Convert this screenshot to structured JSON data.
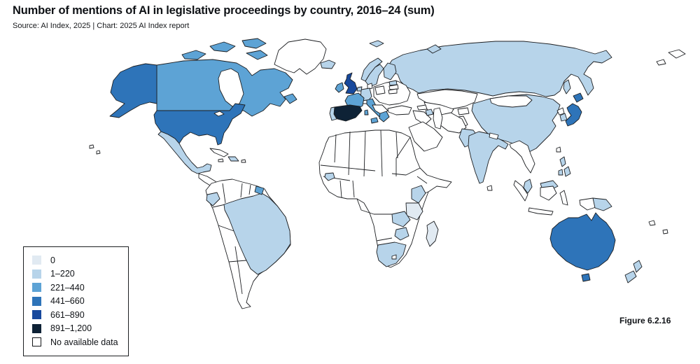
{
  "header": {
    "title": "Number of mentions of AI in legislative proceedings by country, 2016–24 (sum)",
    "source": "Source: AI Index, 2025 | Chart: 2025 AI Index report"
  },
  "figure_label": "Figure 6.2.16",
  "legend": {
    "items": [
      {
        "label": "0",
        "color": "#e1eaf2",
        "bordered": false
      },
      {
        "label": "1–220",
        "color": "#b7d4ea",
        "bordered": false
      },
      {
        "label": "221–440",
        "color": "#5da3d5",
        "bordered": false
      },
      {
        "label": "441–660",
        "color": "#2e74b9",
        "bordered": false
      },
      {
        "label": "661–890",
        "color": "#17499d",
        "bordered": false
      },
      {
        "label": "891–1,200",
        "color": "#0e2236",
        "bordered": false
      },
      {
        "label": "No available data",
        "color": "#ffffff",
        "bordered": true
      }
    ]
  },
  "chart_data": {
    "type": "choropleth_map",
    "title": "Number of mentions of AI in legislative proceedings by country, 2016–24 (sum)",
    "unit": "mentions (binned)",
    "bins": [
      "0",
      "1–220",
      "221–440",
      "441–660",
      "661–890",
      "891–1,200",
      "No available data"
    ],
    "countries": {
      "United States": "441–660",
      "Canada": "221–440",
      "Mexico": "1–220",
      "Greenland": "No available data",
      "Iceland": "1–220",
      "Cuba": "No available data",
      "Jamaica": "No available data",
      "Dominican Republic": "1–220",
      "Puerto Rico": "No available data",
      "Central America": "No available data",
      "South America (other)": "No available data",
      "Brazil": "1–220",
      "Ecuador": "1–220",
      "French Guiana": "221–440",
      "United Kingdom": "661–890",
      "Ireland": "221–440",
      "France": "221–440",
      "Spain": "891–1,200",
      "Portugal": "1–220",
      "Germany": "1–220",
      "Netherlands": "1–220",
      "Denmark": "No available data",
      "Norway": "1–220",
      "Sweden": "1–220",
      "Finland": "1–220",
      "Estonia": "1–220",
      "Latvia": "No available data",
      "Lithuania": "No available data",
      "Poland": "No available data",
      "Eastern Europe": "No available data",
      "Balkans": "No available data",
      "Switzerland": "No available data",
      "Italy": "221–440",
      "Greece": "221–440",
      "Russia": "1–220",
      "Turkey": "No available data",
      "Georgia": "No available data",
      "Azerbaijan": "1–220",
      "Kazakhstan": "No available data",
      "Central Asia": "No available data",
      "Kyrgyzstan/Tajikistan": "No available data",
      "Iran": "No available data",
      "Iraq/Syria": "No available data",
      "Arabian Peninsula": "No available data",
      "Afghanistan": "No available data",
      "Pakistan": "1–220",
      "India": "1–220",
      "Nepal": "No available data",
      "Sri Lanka": "No available data",
      "China": "1–220",
      "Mongolia": "No available data",
      "North Korea": "No available data",
      "South Korea": "1–220",
      "Japan": "441–660",
      "Taiwan": "No available data",
      "Mainland Southeast Asia": "No available data",
      "Malaysia": "1–220",
      "Indonesia": "No available data",
      "Philippines": "1–220",
      "Papua New Guinea": "1–220",
      "Australia": "441–660",
      "New Zealand": "1–220",
      "Pacific Islands": "No available data",
      "Africa (other)": "No available data",
      "Sierra Leone": "1–220",
      "Kenya": "1–220",
      "Tanzania": "0",
      "Zambia": "1–220",
      "Zimbabwe": "1–220",
      "South Africa": "1–220",
      "Lesotho": "No available data",
      "Madagascar": "0"
    }
  }
}
